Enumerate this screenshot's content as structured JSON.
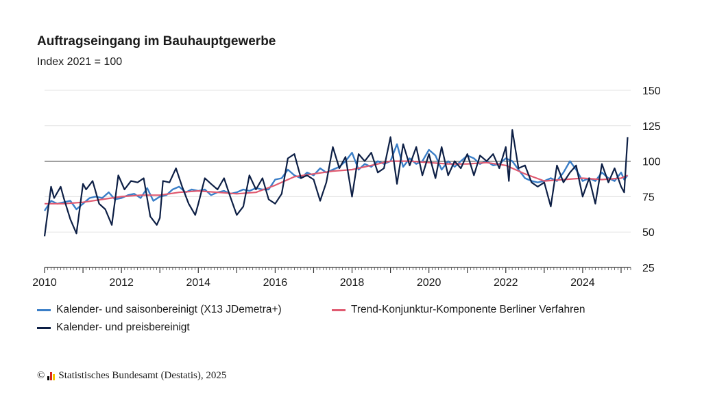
{
  "header": {
    "title": "Auftragseingang im Bauhauptgewerbe",
    "subtitle": "Index 2021 = 100"
  },
  "legend": {
    "items": [
      {
        "label": "Kalender- und saisonbereinigt (X13 JDemetra+)",
        "color": "#3a7ec7"
      },
      {
        "label": "Trend-Konjunktur-Komponente Berliner Verfahren",
        "color": "#e05a70"
      },
      {
        "label": "Kalender- und preisbereinigt",
        "color": "#0d1f45"
      }
    ]
  },
  "footer": {
    "copyright_symbol": "©",
    "source": "Statistisches Bundesamt (Destatis), 2025",
    "logo_colors": [
      "#000000",
      "#d9261c",
      "#f2c500"
    ]
  },
  "chart_data": {
    "type": "line",
    "title": "Auftragseingang im Bauhauptgewerbe",
    "subtitle": "Index 2021 = 100",
    "xlabel": "",
    "ylabel": "",
    "x_start": "2010-01",
    "x_end": "2025-03",
    "xlim": [
      2010.0,
      2025.25
    ],
    "ylim": [
      25,
      150
    ],
    "y_ticks": [
      25,
      50,
      75,
      100,
      125,
      150
    ],
    "x_ticks": [
      "2010",
      "2012",
      "2014",
      "2016",
      "2018",
      "2020",
      "2022",
      "2024"
    ],
    "x_tick_values": [
      2010,
      2012,
      2014,
      2016,
      2018,
      2020,
      2022,
      2024
    ],
    "reference_line": 100,
    "grid": true,
    "y_axis_side": "right",
    "legend_position": "bottom",
    "series": [
      {
        "name": "Kalender- und preisbereinigt",
        "color": "#0d1f45",
        "x": [
          2010.0,
          2010.17,
          2010.25,
          2010.42,
          2010.5,
          2010.67,
          2010.83,
          2011.0,
          2011.08,
          2011.25,
          2011.42,
          2011.58,
          2011.75,
          2011.92,
          2012.08,
          2012.25,
          2012.42,
          2012.58,
          2012.75,
          2012.92,
          2013.0,
          2013.08,
          2013.25,
          2013.42,
          2013.58,
          2013.75,
          2013.92,
          2014.0,
          2014.17,
          2014.33,
          2014.5,
          2014.67,
          2014.83,
          2015.0,
          2015.17,
          2015.33,
          2015.5,
          2015.67,
          2015.83,
          2016.0,
          2016.17,
          2016.33,
          2016.5,
          2016.67,
          2016.83,
          2017.0,
          2017.17,
          2017.33,
          2017.5,
          2017.67,
          2017.83,
          2018.0,
          2018.17,
          2018.33,
          2018.5,
          2018.67,
          2018.83,
          2019.0,
          2019.17,
          2019.33,
          2019.5,
          2019.67,
          2019.83,
          2020.0,
          2020.17,
          2020.33,
          2020.5,
          2020.67,
          2020.83,
          2021.0,
          2021.17,
          2021.33,
          2021.5,
          2021.67,
          2021.83,
          2022.0,
          2022.08,
          2022.17,
          2022.33,
          2022.5,
          2022.67,
          2022.83,
          2023.0,
          2023.17,
          2023.33,
          2023.5,
          2023.67,
          2023.83,
          2024.0,
          2024.17,
          2024.33,
          2024.5,
          2024.67,
          2024.83,
          2025.0,
          2025.08,
          2025.17
        ],
        "values": [
          47,
          82,
          74,
          82,
          74,
          59,
          49,
          84,
          80,
          86,
          70,
          66,
          55,
          90,
          80,
          86,
          85,
          88,
          61,
          55,
          60,
          86,
          85,
          95,
          82,
          70,
          62,
          70,
          88,
          84,
          80,
          88,
          75,
          62,
          68,
          90,
          80,
          88,
          73,
          70,
          77,
          102,
          105,
          88,
          90,
          87,
          72,
          85,
          110,
          95,
          103,
          75,
          105,
          100,
          106,
          92,
          95,
          117,
          84,
          112,
          97,
          110,
          90,
          105,
          88,
          110,
          90,
          100,
          95,
          105,
          90,
          104,
          100,
          105,
          95,
          110,
          86,
          122,
          95,
          97,
          85,
          82,
          85,
          68,
          97,
          85,
          92,
          97,
          75,
          88,
          70,
          98,
          85,
          95,
          82,
          78,
          117
        ]
      },
      {
        "name": "Kalender- und saisonbereinigt (X13 JDemetra+)",
        "color": "#3a7ec7",
        "x": [
          2010.0,
          2010.17,
          2010.33,
          2010.5,
          2010.67,
          2010.83,
          2011.0,
          2011.17,
          2011.33,
          2011.5,
          2011.67,
          2011.83,
          2012.0,
          2012.17,
          2012.33,
          2012.5,
          2012.67,
          2012.83,
          2013.0,
          2013.17,
          2013.33,
          2013.5,
          2013.67,
          2013.83,
          2014.0,
          2014.17,
          2014.33,
          2014.5,
          2014.67,
          2014.83,
          2015.0,
          2015.17,
          2015.33,
          2015.5,
          2015.67,
          2015.83,
          2016.0,
          2016.17,
          2016.33,
          2016.5,
          2016.67,
          2016.83,
          2017.0,
          2017.17,
          2017.33,
          2017.5,
          2017.67,
          2017.83,
          2018.0,
          2018.17,
          2018.33,
          2018.5,
          2018.67,
          2018.83,
          2019.0,
          2019.17,
          2019.33,
          2019.5,
          2019.67,
          2019.83,
          2020.0,
          2020.17,
          2020.33,
          2020.5,
          2020.67,
          2020.83,
          2021.0,
          2021.17,
          2021.33,
          2021.5,
          2021.67,
          2021.83,
          2022.0,
          2022.17,
          2022.33,
          2022.5,
          2022.67,
          2022.83,
          2023.0,
          2023.17,
          2023.33,
          2023.5,
          2023.67,
          2023.83,
          2024.0,
          2024.17,
          2024.33,
          2024.5,
          2024.67,
          2024.83,
          2025.0,
          2025.08,
          2025.17
        ],
        "values": [
          65,
          72,
          70,
          71,
          72,
          66,
          70,
          74,
          75,
          74,
          78,
          73,
          74,
          76,
          77,
          74,
          81,
          72,
          75,
          76,
          80,
          82,
          78,
          80,
          79,
          80,
          76,
          78,
          79,
          77,
          78,
          80,
          79,
          81,
          80,
          80,
          87,
          88,
          94,
          90,
          88,
          92,
          90,
          95,
          92,
          94,
          96,
          100,
          106,
          94,
          98,
          96,
          100,
          98,
          100,
          112,
          96,
          102,
          98,
          100,
          108,
          104,
          94,
          100,
          96,
          100,
          104,
          102,
          98,
          100,
          97,
          98,
          102,
          100,
          94,
          88,
          86,
          85,
          86,
          88,
          86,
          92,
          100,
          94,
          86,
          88,
          86,
          92,
          88,
          86,
          92,
          87,
          90
        ]
      },
      {
        "name": "Trend-Konjunktur-Komponente Berliner Verfahren",
        "color": "#e05a70",
        "x": [
          2010.0,
          2010.5,
          2011.0,
          2011.5,
          2012.0,
          2012.5,
          2013.0,
          2013.5,
          2014.0,
          2014.5,
          2015.0,
          2015.5,
          2016.0,
          2016.5,
          2017.0,
          2017.5,
          2018.0,
          2018.5,
          2019.0,
          2019.5,
          2020.0,
          2020.5,
          2021.0,
          2021.5,
          2022.0,
          2022.5,
          2023.0,
          2023.5,
          2024.0,
          2024.5,
          2025.0,
          2025.17
        ],
        "values": [
          70,
          70,
          71,
          73,
          75,
          76,
          76,
          78,
          79,
          78,
          77,
          78,
          83,
          89,
          91,
          93,
          94,
          97,
          100,
          100,
          99,
          98,
          98,
          99,
          97,
          91,
          86,
          87,
          88,
          87,
          88,
          90
        ]
      }
    ]
  }
}
